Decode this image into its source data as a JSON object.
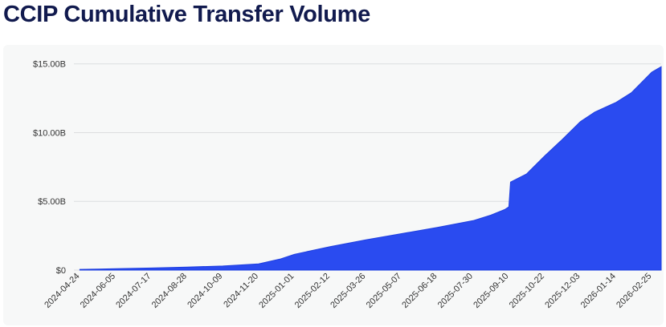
{
  "page": {
    "title": "CCIP Cumulative Transfer Volume"
  },
  "chart_data": {
    "type": "area",
    "title": "CCIP Cumulative Transfer Volume",
    "xlabel": "",
    "ylabel": "",
    "ylim": [
      0,
      15.8
    ],
    "y_unit": "B",
    "y_ticks": [
      {
        "value": 0,
        "label": "$0"
      },
      {
        "value": 5,
        "label": "$5.00B"
      },
      {
        "value": 10,
        "label": "$10.00B"
      },
      {
        "value": 15,
        "label": "$15.00B"
      }
    ],
    "x_tick_labels": [
      "2024-04-24",
      "2024-06-05",
      "2024-07-17",
      "2024-08-28",
      "2024-10-09",
      "2024-11-20",
      "2025-01-01",
      "2025-02-12",
      "2025-03-26",
      "2025-05-07",
      "2025-06-18",
      "2025-07-30",
      "2025-09-10",
      "2025-10-22",
      "2025-12-03",
      "2026-01-14",
      "2026-02-25"
    ],
    "grid": true,
    "legend": "none",
    "fill_color": "#2a4bf0",
    "series": [
      {
        "x": [
          "2024-04-24",
          "2024-06-05",
          "2024-07-17",
          "2024-08-28",
          "2024-10-09",
          "2024-11-20",
          "2024-12-15",
          "2025-01-01",
          "2025-02-12",
          "2025-03-26",
          "2025-05-07",
          "2025-06-18",
          "2025-07-30",
          "2025-08-20",
          "2025-09-05",
          "2025-09-10",
          "2025-09-12",
          "2025-10-01",
          "2025-10-22",
          "2025-11-10",
          "2025-12-03",
          "2025-12-20",
          "2026-01-14",
          "2026-02-01",
          "2026-02-25",
          "2026-03-08"
        ],
        "values": [
          0.05,
          0.1,
          0.15,
          0.22,
          0.3,
          0.45,
          0.8,
          1.15,
          1.7,
          2.2,
          2.65,
          3.1,
          3.6,
          4.0,
          4.4,
          4.6,
          6.4,
          7.0,
          8.3,
          9.4,
          10.8,
          11.5,
          12.2,
          12.9,
          14.4,
          14.8
        ]
      }
    ]
  }
}
